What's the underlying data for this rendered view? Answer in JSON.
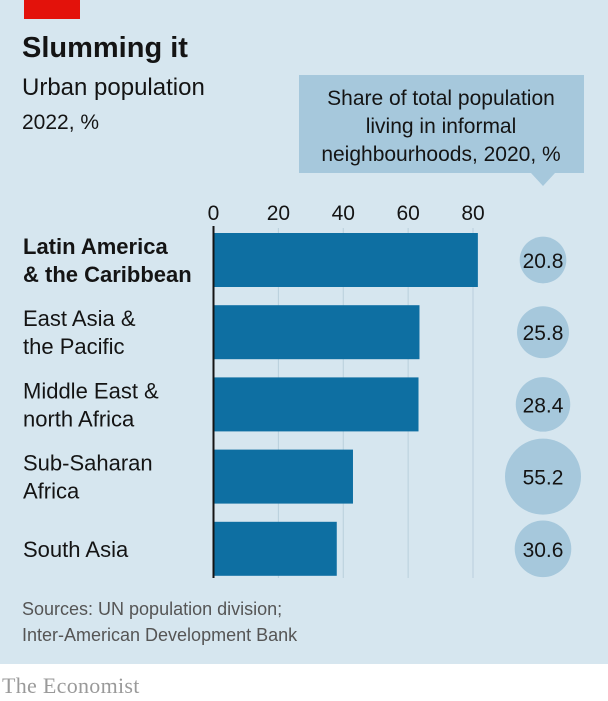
{
  "title": "Slumming it",
  "subtitle": "Urban population",
  "unit_line": "2022, %",
  "bubble_header": [
    "Share of total population",
    "living in informal",
    "neighbourhoods, 2020, %"
  ],
  "source": [
    "Sources: UN population division;",
    "Inter-American Development Bank"
  ],
  "logo": "The Economist",
  "colors": {
    "background": "#d6e6ef",
    "bar": "#0e6fa2",
    "bubble": "#a6c8dc",
    "accent_red": "#e3120b",
    "text": "#141414",
    "source_text": "#555555",
    "logo": "#9a9a9a"
  },
  "chart_data": {
    "type": "bar",
    "orientation": "horizontal",
    "title": "Slumming it",
    "subtitle": "Urban population",
    "unit": "2022, %",
    "xlim": [
      0,
      80
    ],
    "xticks": [
      0,
      20,
      40,
      60,
      80
    ],
    "categories": [
      {
        "label": [
          "Latin America",
          "& the Caribbean"
        ],
        "bold": true
      },
      {
        "label": [
          "East Asia &",
          "the Pacific"
        ],
        "bold": false
      },
      {
        "label": [
          "Middle East &",
          "north Africa"
        ],
        "bold": false
      },
      {
        "label": [
          "Sub-Saharan",
          "Africa"
        ],
        "bold": false
      },
      {
        "label": [
          "South Asia"
        ],
        "bold": false
      }
    ],
    "values": [
      81.5,
      63.5,
      63.2,
      43.0,
      38.0
    ],
    "bubbles": {
      "name": "Share of total population living in informal neighbourhoods, 2020, %",
      "values": [
        20.8,
        25.8,
        28.4,
        55.2,
        30.6
      ],
      "labels": [
        "20.8",
        "25.8",
        "28.4",
        "55.2",
        "30.6"
      ]
    }
  }
}
